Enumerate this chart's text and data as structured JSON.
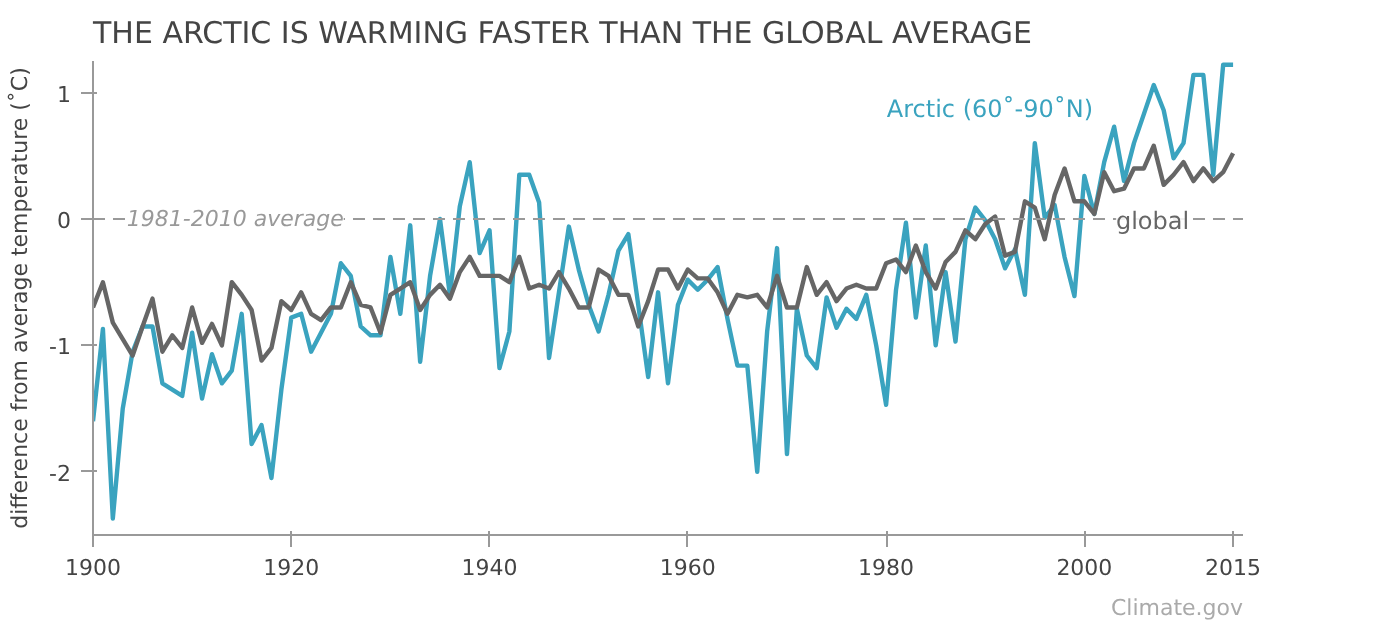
{
  "chart_data": {
    "type": "line",
    "title": "THE ARCTIC IS WARMING FASTER THAN THE GLOBAL AVERAGE",
    "ylabel": "difference from average temperature (˚C)",
    "x": [
      1900,
      1901,
      1902,
      1903,
      1904,
      1905,
      1906,
      1907,
      1908,
      1909,
      1910,
      1911,
      1912,
      1913,
      1914,
      1915,
      1916,
      1917,
      1918,
      1919,
      1920,
      1921,
      1922,
      1923,
      1924,
      1925,
      1926,
      1927,
      1928,
      1929,
      1930,
      1931,
      1932,
      1933,
      1934,
      1935,
      1936,
      1937,
      1938,
      1939,
      1940,
      1941,
      1942,
      1943,
      1944,
      1945,
      1946,
      1947,
      1948,
      1949,
      1950,
      1951,
      1952,
      1953,
      1954,
      1955,
      1956,
      1957,
      1958,
      1959,
      1960,
      1961,
      1962,
      1963,
      1964,
      1965,
      1966,
      1967,
      1968,
      1969,
      1970,
      1971,
      1972,
      1973,
      1974,
      1975,
      1976,
      1977,
      1978,
      1979,
      1980,
      1981,
      1982,
      1983,
      1984,
      1985,
      1986,
      1987,
      1988,
      1989,
      1990,
      1991,
      1992,
      1993,
      1994,
      1995,
      1996,
      1997,
      1998,
      1999,
      2000,
      2001,
      2002,
      2003,
      2004,
      2005,
      2006,
      2007,
      2008,
      2009,
      2010,
      2011,
      2012,
      2013,
      2014,
      2015
    ],
    "series": [
      {
        "name": "Arctic (60˚-90˚N)",
        "color": "#3aa3bf",
        "values": [
          -1.6,
          -0.87,
          -2.37,
          -1.5,
          -1.05,
          -0.85,
          -0.85,
          -1.3,
          -1.35,
          -1.4,
          -0.9,
          -1.42,
          -1.07,
          -1.3,
          -1.2,
          -0.75,
          -1.78,
          -1.63,
          -2.05,
          -1.35,
          -0.78,
          -0.75,
          -1.05,
          -0.9,
          -0.75,
          -0.35,
          -0.45,
          -0.85,
          -0.92,
          -0.92,
          -0.3,
          -0.75,
          -0.05,
          -1.13,
          -0.45,
          0.0,
          -0.6,
          0.1,
          0.45,
          -0.27,
          -0.09,
          -1.18,
          -0.89,
          0.35,
          0.35,
          0.13,
          -1.1,
          -0.58,
          -0.06,
          -0.4,
          -0.68,
          -0.89,
          -0.6,
          -0.25,
          -0.12,
          -0.68,
          -1.25,
          -0.58,
          -1.3,
          -0.68,
          -0.48,
          -0.56,
          -0.48,
          -0.38,
          -0.79,
          -1.16,
          -1.16,
          -2.0,
          -0.89,
          -0.23,
          -1.86,
          -0.71,
          -1.08,
          -1.18,
          -0.62,
          -0.86,
          -0.71,
          -0.79,
          -0.6,
          -1.0,
          -1.47,
          -0.56,
          -0.03,
          -0.78,
          -0.21,
          -1.0,
          -0.42,
          -0.97,
          -0.16,
          0.09,
          -0.01,
          -0.16,
          -0.39,
          -0.24,
          -0.6,
          0.6,
          0.01,
          0.11,
          -0.3,
          -0.61,
          0.34,
          0.04,
          0.45,
          0.73,
          0.3,
          0.6,
          0.83,
          1.06,
          0.86,
          0.48,
          0.6,
          1.14,
          1.14,
          0.35,
          1.22,
          1.22
        ]
      },
      {
        "name": "global",
        "color": "#666666",
        "values": [
          -0.7,
          -0.5,
          -0.82,
          -0.95,
          -1.08,
          -0.85,
          -0.63,
          -1.05,
          -0.92,
          -1.02,
          -0.7,
          -0.98,
          -0.83,
          -1.0,
          -0.5,
          -0.6,
          -0.72,
          -1.12,
          -1.02,
          -0.65,
          -0.72,
          -0.58,
          -0.75,
          -0.8,
          -0.7,
          -0.7,
          -0.5,
          -0.68,
          -0.7,
          -0.9,
          -0.6,
          -0.55,
          -0.5,
          -0.72,
          -0.6,
          -0.52,
          -0.63,
          -0.42,
          -0.3,
          -0.45,
          -0.45,
          -0.45,
          -0.5,
          -0.3,
          -0.55,
          -0.52,
          -0.55,
          -0.42,
          -0.55,
          -0.7,
          -0.7,
          -0.4,
          -0.45,
          -0.6,
          -0.6,
          -0.85,
          -0.65,
          -0.4,
          -0.4,
          -0.55,
          -0.4,
          -0.47,
          -0.47,
          -0.58,
          -0.75,
          -0.6,
          -0.62,
          -0.6,
          -0.7,
          -0.45,
          -0.7,
          -0.7,
          -0.38,
          -0.6,
          -0.5,
          -0.65,
          -0.55,
          -0.52,
          -0.55,
          -0.55,
          -0.35,
          -0.32,
          -0.42,
          -0.21,
          -0.42,
          -0.55,
          -0.34,
          -0.26,
          -0.09,
          -0.16,
          -0.04,
          0.02,
          -0.29,
          -0.26,
          0.14,
          0.09,
          -0.16,
          0.19,
          0.4,
          0.14,
          0.14,
          0.04,
          0.37,
          0.22,
          0.24,
          0.4,
          0.4,
          0.58,
          0.27,
          0.35,
          0.45,
          0.3,
          0.4,
          0.3,
          0.37,
          0.52
        ]
      }
    ],
    "xlim": [
      1900,
      2016
    ],
    "ylim": [
      -2.5,
      1.25
    ],
    "xticks": [
      1900,
      1920,
      1940,
      1960,
      1980,
      2000,
      2015
    ],
    "yticks": [
      -2,
      -1,
      0,
      1
    ],
    "ref_lines": [
      {
        "axis": "y",
        "value": 0,
        "label": "1981-2010 average",
        "color": "#999999",
        "line_style": "dashed"
      }
    ],
    "annotations": [
      "Climate.gov"
    ],
    "grid": false,
    "line_style": "solid",
    "marker": "none"
  }
}
